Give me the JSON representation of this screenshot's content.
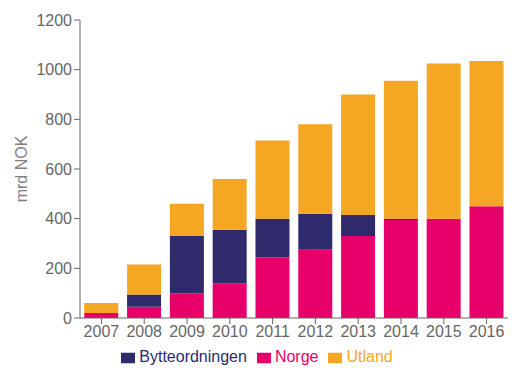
{
  "chart_data": {
    "type": "bar",
    "stacked": true,
    "ylabel": "mrd NOK",
    "categories": [
      "2007",
      "2008",
      "2009",
      "2010",
      "2011",
      "2012",
      "2013",
      "2014",
      "2015",
      "2016"
    ],
    "series": [
      {
        "name": "Norge",
        "color": "#e8006a",
        "values": [
          20,
          45,
          100,
          140,
          245,
          275,
          330,
          395,
          400,
          450
        ]
      },
      {
        "name": "Bytteordningen",
        "color": "#2e2a6b",
        "values": [
          0,
          50,
          230,
          215,
          155,
          145,
          85,
          5,
          0,
          0
        ]
      },
      {
        "name": "Utland",
        "color": "#f5a623",
        "values": [
          40,
          120,
          130,
          205,
          315,
          360,
          485,
          555,
          625,
          585
        ]
      }
    ],
    "ylim": [
      0,
      1200
    ],
    "yticks": [
      0,
      200,
      400,
      600,
      800,
      1000,
      1200
    ],
    "grid": false,
    "legend": "bottom"
  }
}
